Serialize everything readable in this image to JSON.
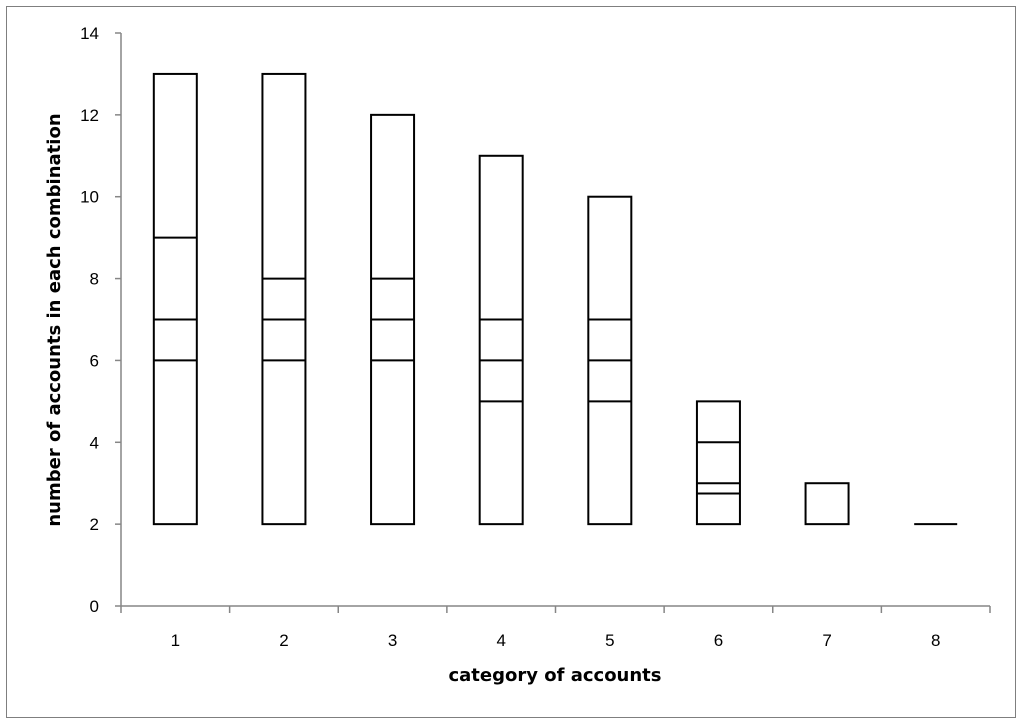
{
  "chart_data": {
    "type": "bar",
    "subtype": "floating-box-with-dividers",
    "categories": [
      "1",
      "2",
      "3",
      "4",
      "5",
      "6",
      "7",
      "8"
    ],
    "boxes": [
      {
        "category": "1",
        "bottom": 2,
        "top": 13,
        "dividers": [
          6,
          7,
          9
        ]
      },
      {
        "category": "2",
        "bottom": 2,
        "top": 13,
        "dividers": [
          6,
          7,
          8
        ]
      },
      {
        "category": "3",
        "bottom": 2,
        "top": 12,
        "dividers": [
          6,
          7,
          8
        ]
      },
      {
        "category": "4",
        "bottom": 2,
        "top": 11,
        "dividers": [
          5,
          6,
          7
        ]
      },
      {
        "category": "5",
        "bottom": 2,
        "top": 10,
        "dividers": [
          5,
          6,
          7
        ]
      },
      {
        "category": "6",
        "bottom": 2,
        "top": 5,
        "dividers": [
          2.75,
          3,
          4
        ]
      },
      {
        "category": "7",
        "bottom": 2,
        "top": 3,
        "dividers": []
      },
      {
        "category": "8",
        "bottom": 2,
        "top": 2,
        "dividers": []
      }
    ],
    "xlabel": "category of accounts",
    "ylabel": "number of accounts in each combination",
    "ylim": [
      0,
      14
    ],
    "yticks": [
      "0",
      "2",
      "4",
      "6",
      "8",
      "10",
      "12",
      "14"
    ],
    "grid": false,
    "legend": "none",
    "colors": {
      "stroke": "#000000",
      "fill": "#ffffff",
      "axis": "#868686",
      "frame": "#7f7f7f"
    }
  }
}
